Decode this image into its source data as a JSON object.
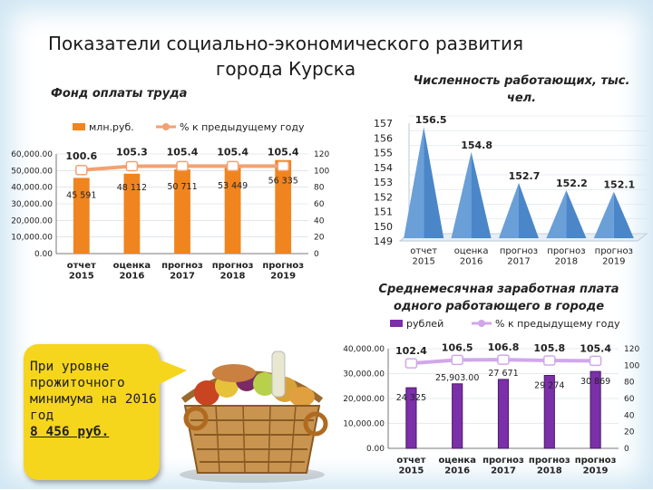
{
  "title": "Показатели социально-экономического развития\nгорода Курска",
  "wage_fund": {
    "section_title": "Фонд оплаты труда",
    "chart_data": {
      "type": "bar",
      "categories": [
        "отчет\n2015",
        "оценка\n2016",
        "прогноз\n2017",
        "прогноз\n2018",
        "прогноз\n2019"
      ],
      "series": [
        {
          "name": "млн.руб.",
          "values": [
            45591,
            48112,
            50711,
            53449,
            56335
          ],
          "labels": [
            "45 591",
            "48 112",
            "50 711",
            "53 449",
            "56 335"
          ]
        },
        {
          "name": "% к предыдущему году",
          "values": [
            100.6,
            105.3,
            105.4,
            105.4,
            105.4
          ],
          "labels": [
            "100.6",
            "105.3",
            "105.4",
            "105.4",
            "105.4"
          ]
        }
      ],
      "ylim": [
        0,
        60000
      ],
      "y_ticks": [
        "0.00",
        "10,000.00",
        "20,000.00",
        "30,000.00",
        "40,000.00",
        "50,000.00",
        "60,000.00"
      ],
      "y2lim": [
        0,
        120
      ],
      "y2_ticks": [
        "0",
        "20",
        "40",
        "60",
        "80",
        "100",
        "120"
      ],
      "legend_position": "top",
      "colors": {
        "bars": "#f0841e",
        "line": "#f2a173"
      }
    }
  },
  "employment": {
    "section_title": "Численность работающих, тыс.\nчел.",
    "chart_data": {
      "type": "bar",
      "categories": [
        "отчет\n2015",
        "оценка\n2016",
        "прогноз\n2017",
        "прогноз\n2018",
        "прогноз\n2019"
      ],
      "values": [
        156.5,
        154.8,
        152.7,
        152.2,
        152.1
      ],
      "labels": [
        "156.5",
        "154.8",
        "152.7",
        "152.2",
        "152.1"
      ],
      "ylim": [
        149,
        157
      ],
      "y_ticks": [
        "149",
        "150",
        "151",
        "152",
        "153",
        "154",
        "155",
        "156",
        "157"
      ],
      "colors": {
        "cones": "#4a86c8"
      }
    }
  },
  "salary": {
    "section_title": "Среднемесячная заработная плата\nодного работающего в городе",
    "chart_data": {
      "type": "bar",
      "categories": [
        "отчет\n2015",
        "оценка\n2016",
        "прогноз\n2017",
        "прогноз\n2018",
        "прогноз\n2019"
      ],
      "series": [
        {
          "name": "рублей",
          "values": [
            24325,
            25903,
            27671,
            29274,
            30869
          ],
          "labels": [
            "24 325",
            "25,903.00",
            "27 671",
            "29 274",
            "30 869"
          ]
        },
        {
          "name": "% к предыдущему году",
          "values": [
            102.4,
            106.5,
            106.8,
            105.8,
            105.4
          ],
          "labels": [
            "102.4",
            "106.5",
            "106.8",
            "105.8",
            "105.4"
          ]
        }
      ],
      "ylim": [
        0,
        40000
      ],
      "y_ticks": [
        "0.00",
        "10,000.00",
        "20,000.00",
        "30,000.00",
        "40,000.00"
      ],
      "y2lim": [
        0,
        120
      ],
      "y2_ticks": [
        "0",
        "20",
        "40",
        "60",
        "80",
        "100",
        "120"
      ],
      "legend_position": "top",
      "colors": {
        "bars": "#7b2fa8",
        "line": "#d0a8ea"
      }
    }
  },
  "callout": {
    "text": "При уровне прожиточного минимума на 2016 год",
    "value": "8 456 руб."
  }
}
